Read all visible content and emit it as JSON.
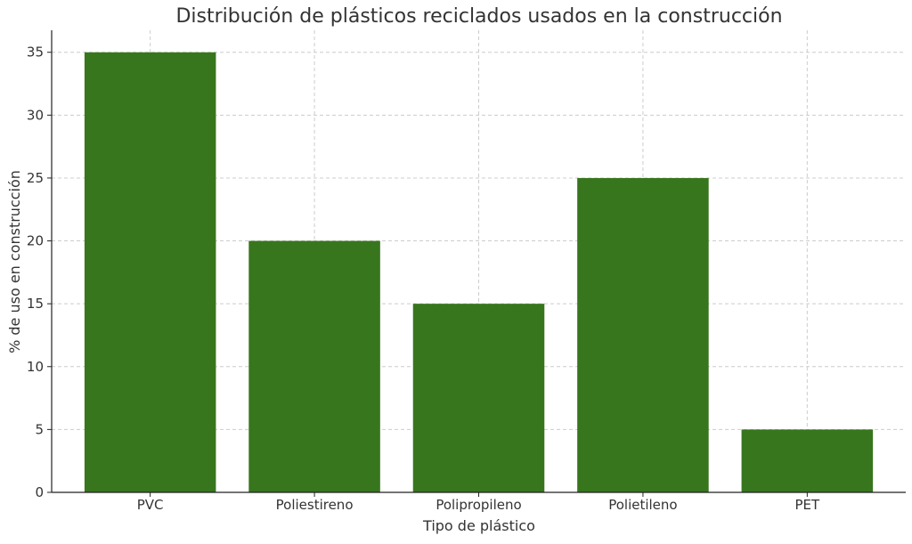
{
  "chart_data": {
    "type": "bar",
    "title": "Distribución de plásticos reciclados usados en la construcción",
    "xlabel": "Tipo de plástico",
    "ylabel": "% de uso en construcción",
    "categories": [
      "PVC",
      "Poliestireno",
      "Polipropileno",
      "Polietileno",
      "PET"
    ],
    "values": [
      35,
      20,
      15,
      25,
      5
    ],
    "ylim": [
      0,
      36.75
    ],
    "yticks": [
      0,
      5,
      10,
      15,
      20,
      25,
      30,
      35
    ],
    "grid": true,
    "bar_color": "#38761d"
  }
}
